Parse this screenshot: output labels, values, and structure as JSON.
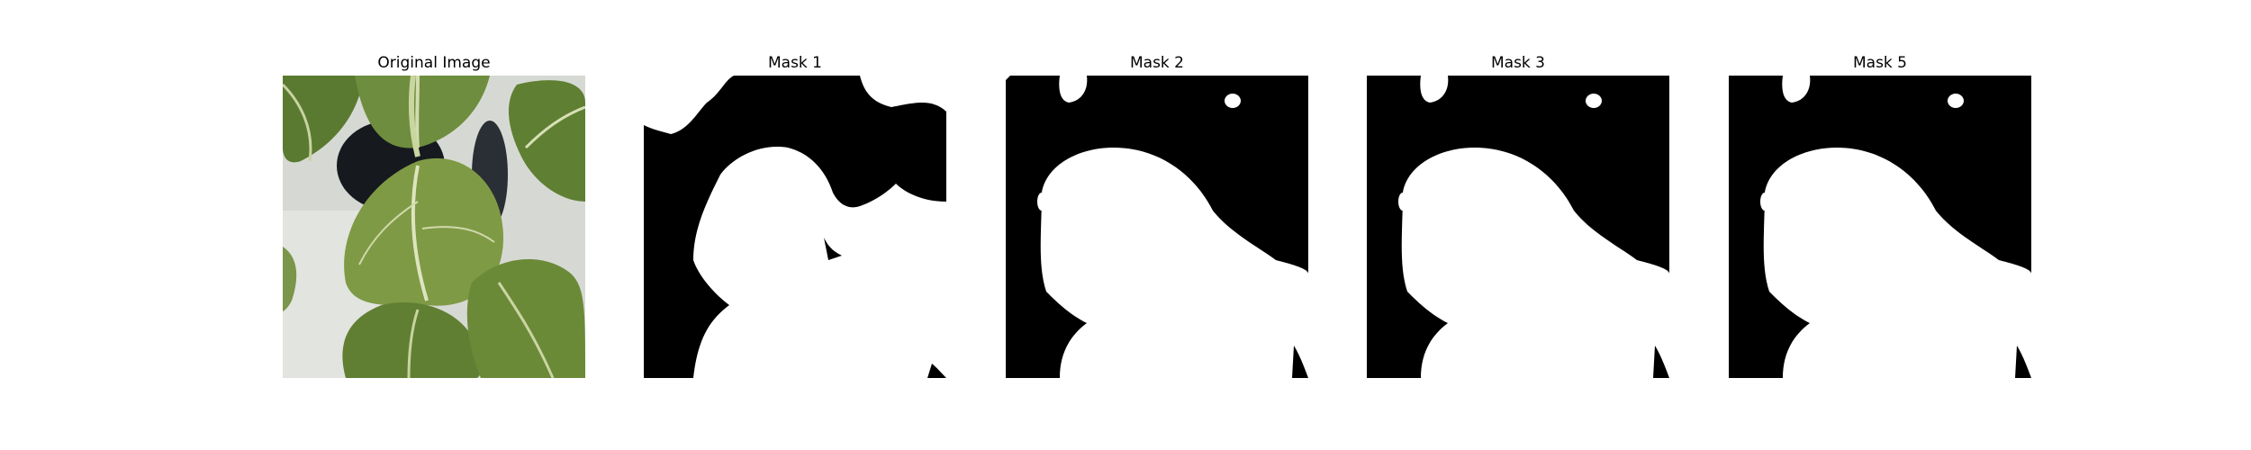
{
  "panels": [
    {
      "title": "Original Image",
      "kind": "photo"
    },
    {
      "title": "Mask 1",
      "kind": "mask"
    },
    {
      "title": "Mask 2",
      "kind": "mask"
    },
    {
      "title": "Mask 3",
      "kind": "mask"
    },
    {
      "title": "Mask 5",
      "kind": "mask"
    }
  ],
  "colors": {
    "mask_foreground": "#000000",
    "mask_background": "#ffffff",
    "leaf_dark": "#4f6b2c",
    "leaf_mid": "#6f8b3f",
    "leaf_light": "#8fa85a",
    "pot_white": "#d9dcd8",
    "pot_hole": "#161a1e",
    "vein": "#d8e0b8"
  }
}
